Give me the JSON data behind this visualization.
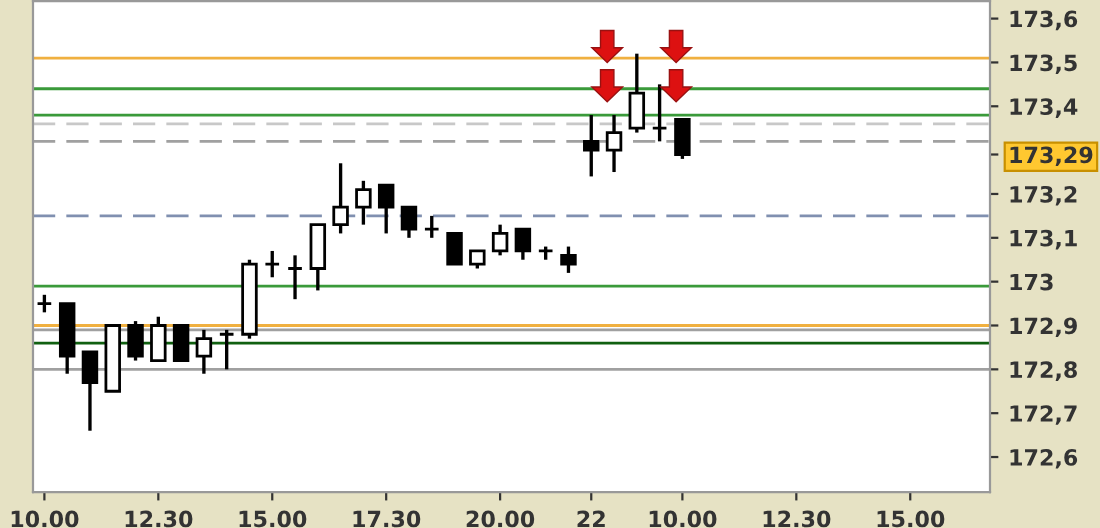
{
  "chart_data": {
    "type": "candlestick",
    "categories": [
      "10.00",
      null,
      null,
      null,
      null,
      "12.30",
      null,
      null,
      null,
      null,
      "15.00",
      null,
      null,
      null,
      null,
      "17.30",
      null,
      null,
      null,
      null,
      "20.00",
      null,
      null,
      null,
      "22",
      null,
      null,
      null,
      "10.00",
      null,
      null,
      null,
      null,
      "12.30",
      null,
      null,
      null,
      null,
      "15.00",
      null,
      null,
      null
    ],
    "ohlc": [
      [
        172.95,
        172.97,
        172.93,
        172.95
      ],
      [
        172.95,
        172.95,
        172.79,
        172.83
      ],
      [
        172.84,
        172.84,
        172.66,
        172.77
      ],
      [
        172.75,
        172.9,
        172.75,
        172.9
      ],
      [
        172.9,
        172.91,
        172.82,
        172.83
      ],
      [
        172.82,
        172.92,
        172.82,
        172.9
      ],
      [
        172.9,
        172.9,
        172.82,
        172.82
      ],
      [
        172.83,
        172.89,
        172.79,
        172.87
      ],
      [
        172.88,
        172.89,
        172.8,
        172.88
      ],
      [
        172.88,
        173.05,
        172.87,
        173.04
      ],
      [
        173.04,
        173.07,
        173.01,
        173.04
      ],
      [
        173.03,
        173.06,
        172.96,
        173.03
      ],
      [
        173.03,
        173.13,
        172.98,
        173.13
      ],
      [
        173.13,
        173.27,
        173.11,
        173.17
      ],
      [
        173.17,
        173.23,
        173.13,
        173.21
      ],
      [
        173.22,
        173.22,
        173.11,
        173.17
      ],
      [
        173.17,
        173.17,
        173.1,
        173.12
      ],
      [
        173.12,
        173.15,
        173.1,
        173.12
      ],
      [
        173.11,
        173.11,
        173.04,
        173.04
      ],
      [
        173.04,
        173.07,
        173.03,
        173.07
      ],
      [
        173.07,
        173.13,
        173.06,
        173.11
      ],
      [
        173.12,
        173.12,
        173.05,
        173.07
      ],
      [
        173.07,
        173.08,
        173.05,
        173.07
      ],
      [
        173.06,
        173.08,
        173.02,
        173.04
      ],
      [
        173.32,
        173.38,
        173.24,
        173.3
      ],
      [
        173.3,
        173.38,
        173.25,
        173.34
      ],
      [
        173.35,
        173.52,
        173.34,
        173.43
      ],
      [
        173.35,
        173.45,
        173.32,
        173.35
      ],
      [
        173.37,
        173.37,
        173.28,
        173.29
      ],
      null,
      null,
      null,
      null,
      null,
      null,
      null,
      null,
      null,
      null,
      null,
      null,
      null
    ],
    "color": "#000000",
    "ylim": [
      172.52,
      173.64
    ],
    "yticks": [
      {
        "value": 172.6,
        "label": "172,6"
      },
      {
        "value": 172.7,
        "label": "172,7"
      },
      {
        "value": 172.8,
        "label": "172,8"
      },
      {
        "value": 172.9,
        "label": "172,9"
      },
      {
        "value": 173.0,
        "label": "173"
      },
      {
        "value": 173.1,
        "label": "173,1"
      },
      {
        "value": 173.2,
        "label": "173,2"
      },
      {
        "value": 173.29,
        "label": "173,29"
      },
      {
        "value": 173.4,
        "label": "173,4"
      },
      {
        "value": 173.5,
        "label": "173,5"
      },
      {
        "value": 173.6,
        "label": "173,6"
      }
    ],
    "ref_lines": [
      {
        "axis": "y",
        "value": 173.51,
        "color": "#f0b040",
        "line_style": "solid"
      },
      {
        "axis": "y",
        "value": 173.44,
        "color": "#3a9a3a",
        "line_style": "solid"
      },
      {
        "axis": "y",
        "value": 173.38,
        "color": "#3a9a3a",
        "line_style": "solid"
      },
      {
        "axis": "y",
        "value": 173.36,
        "color": "#c8c8c8",
        "line_style": "dashed"
      },
      {
        "axis": "y",
        "value": 173.32,
        "color": "#a0a0a0",
        "line_style": "dashed"
      },
      {
        "axis": "y",
        "value": 173.15,
        "color": "#8090b0",
        "line_style": "dashed"
      },
      {
        "axis": "y",
        "value": 172.99,
        "color": "#3a9a3a",
        "line_style": "solid"
      },
      {
        "axis": "y",
        "value": 172.9,
        "color": "#f0b040",
        "line_style": "solid"
      },
      {
        "axis": "y",
        "value": 172.89,
        "color": "#a0a0a0",
        "line_style": "solid"
      },
      {
        "axis": "y",
        "value": 172.86,
        "color": "#106010",
        "line_style": "solid"
      },
      {
        "axis": "y",
        "value": 172.8,
        "color": "#a0a0a0",
        "line_style": "solid"
      }
    ],
    "grid": false
  }
}
